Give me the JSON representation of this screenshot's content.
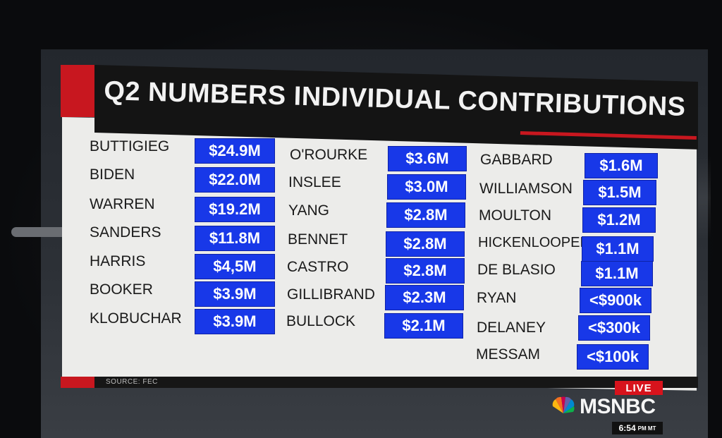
{
  "title": "Q2 NUMBERS INDIVIDUAL CONTRIBUTIONS",
  "source": "SOURCE: FEC",
  "colors": {
    "accent_red": "#c8171f",
    "amount_blue": "#1838e8",
    "panel": "#ececea"
  },
  "columns": [
    {
      "rows": [
        {
          "name": "BUTTIGIEG",
          "amount": "$24.9M"
        },
        {
          "name": "BIDEN",
          "amount": "$22.0M"
        },
        {
          "name": "WARREN",
          "amount": "$19.2M"
        },
        {
          "name": "SANDERS",
          "amount": "$11.8M"
        },
        {
          "name": "HARRIS",
          "amount": "$4,5M"
        },
        {
          "name": "BOOKER",
          "amount": "$3.9M"
        },
        {
          "name": "KLOBUCHAR",
          "amount": "$3.9M"
        }
      ]
    },
    {
      "rows": [
        {
          "name": "O'ROURKE",
          "amount": "$3.6M"
        },
        {
          "name": "INSLEE",
          "amount": "$3.0M"
        },
        {
          "name": "YANG",
          "amount": "$2.8M"
        },
        {
          "name": "BENNET",
          "amount": "$2.8M"
        },
        {
          "name": "CASTRO",
          "amount": "$2.8M"
        },
        {
          "name": "GILLIBRAND",
          "amount": "$2.3M"
        },
        {
          "name": "BULLOCK",
          "amount": "$2.1M"
        }
      ]
    },
    {
      "rows": [
        {
          "name": "GABBARD",
          "amount": "$1.6M"
        },
        {
          "name": "WILLIAMSON",
          "amount": "$1.5M"
        },
        {
          "name": "MOULTON",
          "amount": "$1.2M"
        },
        {
          "name": "HICKENLOOPER",
          "amount": "$1.1M"
        },
        {
          "name": "DE BLASIO",
          "amount": "$1.1M"
        },
        {
          "name": "RYAN",
          "amount": "<$900k"
        },
        {
          "name": "DELANEY",
          "amount": "<$300k"
        },
        {
          "name": "MESSAM",
          "amount": "<$100k"
        }
      ]
    }
  ],
  "live": "LIVE",
  "network": "MSNBC",
  "network_icon": "peacock-icon",
  "time": "6:54",
  "time_zone": "PM MT"
}
